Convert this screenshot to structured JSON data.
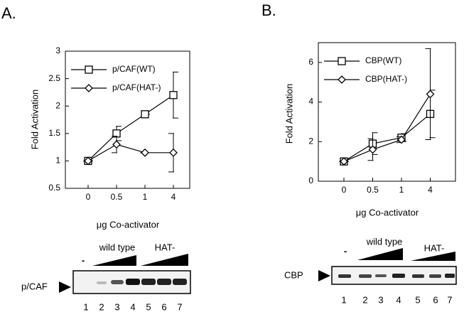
{
  "panel_labels": [
    "A.",
    "B."
  ],
  "chart_data": [
    {
      "type": "line",
      "ylabel": "Fold Activation",
      "xlabel": "μg Co-activator",
      "categories": [
        "0",
        "0.5",
        "1",
        "4"
      ],
      "ylim": [
        0.5,
        3
      ],
      "yticks": [
        0.5,
        1,
        1.5,
        2,
        2.5,
        3
      ],
      "legend": "upper left",
      "series": [
        {
          "name": "p/CAF(WT)",
          "color": "#000000",
          "marker": "square",
          "values": [
            1,
            1.5,
            1.85,
            2.2
          ],
          "errors": [
            0,
            0.13,
            0,
            0.42
          ]
        },
        {
          "name": "p/CAF(HAT-)",
          "color": "#000000",
          "marker": "diamond",
          "values": [
            1,
            1.3,
            1.15,
            1.15
          ],
          "errors": [
            0,
            0.15,
            0,
            0.35
          ]
        }
      ]
    },
    {
      "type": "line",
      "ylabel": "Fold Activation",
      "xlabel": "μg Co-activator",
      "categories": [
        "0",
        "0.5",
        "1",
        "4"
      ],
      "ylim": [
        0,
        7
      ],
      "yticks": [
        0,
        2,
        4,
        6
      ],
      "legend": "upper left",
      "series": [
        {
          "name": "CBP(WT)",
          "color": "#000000",
          "marker": "square",
          "values": [
            1,
            1.9,
            2.2,
            3.4
          ],
          "errors": [
            0,
            0.55,
            0.2,
            1.2
          ]
        },
        {
          "name": "CBP(HAT-)",
          "color": "#000000",
          "marker": "diamond",
          "values": [
            1,
            1.6,
            2.1,
            4.4
          ],
          "errors": [
            0,
            0.55,
            0.15,
            2.3
          ]
        }
      ]
    }
  ],
  "blots": [
    {
      "protein": "p/CAF",
      "control": "-",
      "group1": "wild type",
      "group2": "HAT-",
      "lanes": [
        "1",
        "2",
        "3",
        "4",
        "5",
        "6",
        "7"
      ]
    },
    {
      "protein": "CBP",
      "control": "-",
      "group1": "wild type",
      "group2": "HAT-",
      "lanes": [
        "1",
        "2",
        "3",
        "4",
        "5",
        "6",
        "7"
      ]
    }
  ]
}
